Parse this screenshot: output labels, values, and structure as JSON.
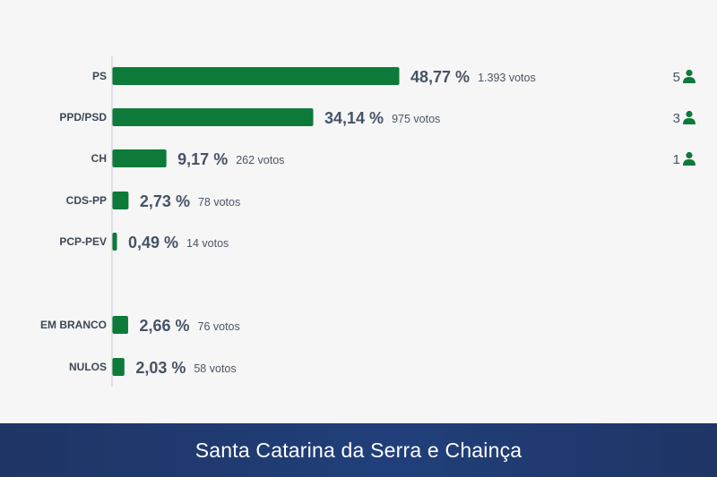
{
  "chart_data": {
    "type": "bar",
    "orientation": "horizontal",
    "categories": [
      "PS",
      "PPD/PSD",
      "CH",
      "CDS-PP",
      "PCP-PEV",
      "EM BRANCO",
      "NULOS"
    ],
    "values": [
      48.77,
      34.14,
      9.17,
      2.73,
      0.49,
      2.66,
      2.03
    ],
    "percent_labels": [
      "48,77 %",
      "34,14 %",
      "9,17 %",
      "2,73 %",
      "0,49 %",
      "2,66 %",
      "2,03 %"
    ],
    "votes_labels": [
      "1.393 votos",
      "975 votos",
      "262 votos",
      "78 votos",
      "14 votos",
      "76 votos",
      "58 votos"
    ],
    "seats": [
      "5",
      "3",
      "1",
      "",
      "",
      "",
      ""
    ],
    "bar_color": "#0d7a3a",
    "axis_line_color": "#c8ccd2",
    "grid": false
  },
  "footer": {
    "title": "Santa Catarina da Serra e Chainça"
  },
  "icons": {
    "seat": "person-icon"
  }
}
